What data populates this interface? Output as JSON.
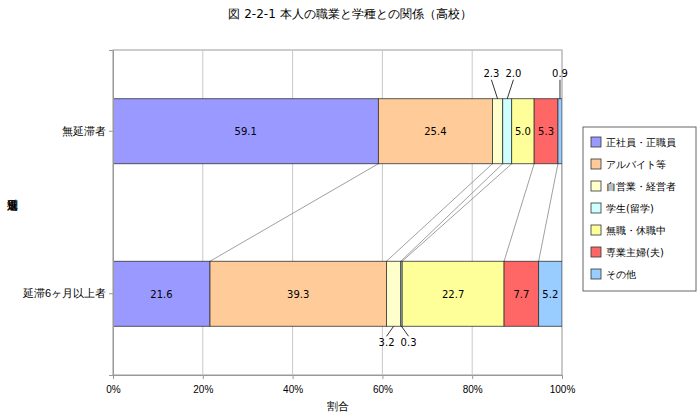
{
  "chart_data": {
    "type": "bar",
    "orientation": "horizontal",
    "stacked": true,
    "data_labels": true,
    "grid": true,
    "legend": "right",
    "title": "図 2-2-1  本人の職業と学種との関係（高校）",
    "x_label": "割合",
    "y_label": "返還種別",
    "categories": [
      "無延滞者",
      "延滞6ヶ月以上者"
    ],
    "xlim": [
      0,
      100
    ],
    "xticks": [
      {
        "value": 0,
        "label": "0%"
      },
      {
        "value": 20,
        "label": "20%"
      },
      {
        "value": 40,
        "label": "40%"
      },
      {
        "value": 60,
        "label": "60%"
      },
      {
        "value": 80,
        "label": "80%"
      },
      {
        "value": 100,
        "label": "100%"
      }
    ],
    "series": [
      {
        "name": "正社員・正職員",
        "color": "#9999ff",
        "values": [
          59.1,
          21.6
        ],
        "value_labels": [
          "59.1",
          "21.6"
        ]
      },
      {
        "name": "アルバイト等",
        "color": "#ffcc99",
        "values": [
          25.4,
          39.3
        ],
        "value_labels": [
          "25.4",
          "39.3"
        ]
      },
      {
        "name": "自営業・経営者",
        "color": "#ffffcc",
        "values": [
          2.3,
          3.2
        ],
        "value_labels": [
          "2.3",
          "3.2"
        ]
      },
      {
        "name": "学生(留学)",
        "color": "#ccffff",
        "values": [
          2.0,
          0.3
        ],
        "value_labels": [
          "2.0",
          "0.3"
        ]
      },
      {
        "name": "無職・休職中",
        "color": "#ffff99",
        "values": [
          5.0,
          22.7
        ],
        "value_labels": [
          "5.0",
          "22.7"
        ]
      },
      {
        "name": "専業主婦(夫)",
        "color": "#ff6666",
        "values": [
          5.3,
          7.7
        ],
        "value_labels": [
          "5.3",
          "7.7"
        ]
      },
      {
        "name": "その他",
        "color": "#99ccff",
        "values": [
          0.9,
          5.2
        ],
        "value_labels": [
          "0.9",
          "5.2"
        ]
      }
    ]
  }
}
